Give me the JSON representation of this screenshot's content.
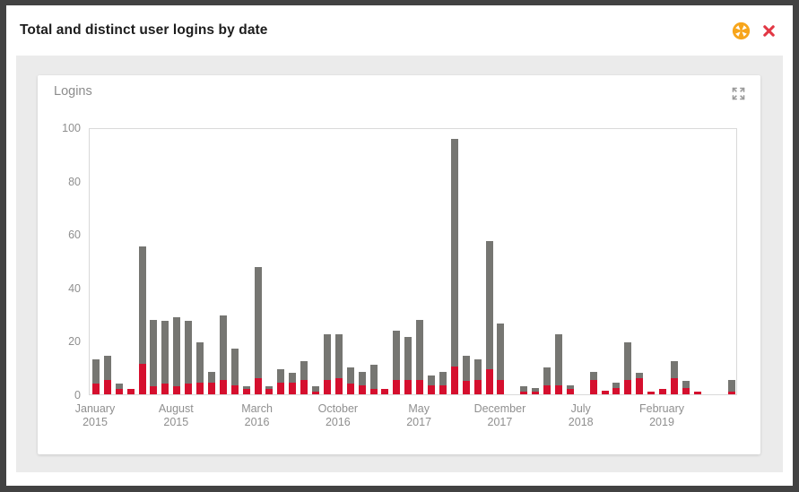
{
  "window": {
    "title": "Total and distinct user logins by date"
  },
  "header": {
    "icons": [
      "compress-arrows-icon",
      "close-icon"
    ]
  },
  "card": {
    "title": "Logins",
    "icons": [
      "expand-icon"
    ]
  },
  "colors": {
    "frame": "#424242",
    "modal_bg": "#ffffff",
    "panel_bg": "#ebebeb",
    "bar_total_gray": "#767672",
    "bar_distinct_red": "#d50f2e",
    "orange_icon": "#f7a51b",
    "close_icon_red": "#e23744",
    "axis_text": "#8f8f8f",
    "plot_border": "#d9d9d9",
    "title_text": "#1d1d1d"
  },
  "chart_data": {
    "type": "bar",
    "stacked": true,
    "title": "Logins",
    "xlabel": "",
    "ylabel": "",
    "ylim": [
      0,
      100
    ],
    "y_ticks": [
      0,
      20,
      40,
      60,
      80,
      100
    ],
    "grid": false,
    "legend": "none",
    "categories": [
      "Jan 2015",
      "Feb 2015",
      "Mar 2015",
      "Apr 2015",
      "May 2015",
      "Jun 2015",
      "Jul 2015",
      "Aug 2015",
      "Sep 2015",
      "Oct 2015",
      "Nov 2015",
      "Dec 2015",
      "Jan 2016",
      "Feb 2016",
      "Mar 2016",
      "Apr 2016",
      "May 2016",
      "Jun 2016",
      "Jul 2016",
      "Aug 2016",
      "Sep 2016",
      "Oct 2016",
      "Nov 2016",
      "Dec 2016",
      "Jan 2017",
      "Feb 2017",
      "Mar 2017",
      "Apr 2017",
      "May 2017",
      "Jun 2017",
      "Jul 2017",
      "Aug 2017",
      "Sep 2017",
      "Oct 2017",
      "Nov 2017",
      "Dec 2017",
      "Jan 2018",
      "Feb 2018",
      "Mar 2018",
      "Apr 2018",
      "May 2018",
      "Jun 2018",
      "Jul 2018",
      "Aug 2018",
      "Sep 2018",
      "Oct 2018",
      "Nov 2018",
      "Dec 2018",
      "Jan 2019",
      "Feb 2019",
      "Mar 2019",
      "Apr 2019",
      "May 2019",
      "Jun 2019",
      "Jul 2019",
      "Aug 2019"
    ],
    "series": [
      {
        "name": "Distinct user logins",
        "color": "#d50f2e",
        "values": [
          4,
          5.5,
          2,
          2,
          11.5,
          3,
          4,
          3,
          4,
          4.5,
          4.5,
          5.5,
          3.5,
          2,
          6,
          2,
          4.5,
          4.5,
          5.5,
          1,
          5.5,
          6,
          4,
          3.5,
          2,
          2,
          5.5,
          5.5,
          5.5,
          3.5,
          3.5,
          10.5,
          5,
          5.5,
          9.5,
          5.5,
          0,
          1,
          1,
          3.5,
          3.5,
          2,
          0,
          5.5,
          1.5,
          2.5,
          5.5,
          6,
          1,
          2,
          6,
          2.5,
          1,
          0,
          0,
          1
        ]
      },
      {
        "name": "Total logins",
        "color": "#767672",
        "values": [
          13,
          14.5,
          4,
          2,
          55.5,
          28,
          27.5,
          29,
          27.5,
          19.5,
          8.5,
          29.5,
          17,
          3,
          47.5,
          3,
          9.5,
          8,
          12.5,
          3,
          22.5,
          22.5,
          10,
          8.5,
          11,
          2,
          24,
          21.5,
          28,
          7,
          8.5,
          95.5,
          14.5,
          13,
          57.5,
          26.5,
          0,
          3,
          2.5,
          10,
          22.5,
          3.5,
          0,
          8.5,
          1.5,
          4.5,
          19.5,
          8,
          1,
          2,
          12.5,
          5,
          1,
          0,
          0,
          5.5
        ]
      }
    ],
    "x_tick_indices": [
      0,
      7,
      14,
      21,
      28,
      35,
      42,
      49
    ],
    "x_tick_labels": [
      [
        "January",
        "2015"
      ],
      [
        "August",
        "2015"
      ],
      [
        "March",
        "2016"
      ],
      [
        "October",
        "2016"
      ],
      [
        "May",
        "2017"
      ],
      [
        "December",
        "2017"
      ],
      [
        "July",
        "2018"
      ],
      [
        "February",
        "2019"
      ]
    ]
  }
}
